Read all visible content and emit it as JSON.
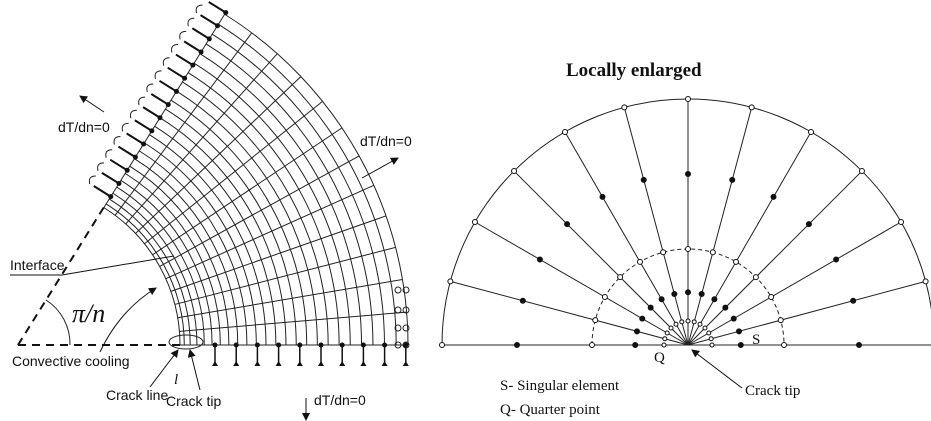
{
  "left_panel": {
    "top_boundary_label": "dT/dn=0",
    "right_boundary_label": "dT/dn=0",
    "bottom_boundary_label": "dT/dn=0",
    "interface_label": "Interface",
    "angle_label": "π/n",
    "convective_label": "Convective cooling",
    "crack_line_label": "Crack line",
    "crack_tip_label": "Crack tip",
    "crack_length_label": "l"
  },
  "right_panel": {
    "title": "Locally enlarged",
    "s_marker": "S",
    "q_marker": "Q",
    "crack_tip_label": "Crack tip",
    "legend": [
      "S- Singular element",
      "Q- Quarter point"
    ]
  }
}
